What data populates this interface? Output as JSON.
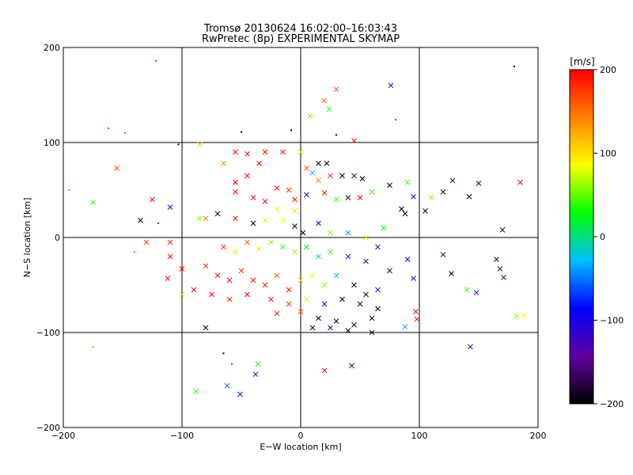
{
  "chart_data": {
    "type": "scatter",
    "title_line1": "Tromsø 20130624 16:02:00–16:03:43",
    "title_line2": "RwPretec (8p) EXPERIMENTAL SKYMAP",
    "xlabel": "E−W location [km]",
    "ylabel": "N−S location [km]",
    "xlim": [
      -200,
      200
    ],
    "ylim": [
      -200,
      200
    ],
    "x_ticks": [
      -200,
      -100,
      0,
      100,
      200
    ],
    "y_ticks": [
      -200,
      -100,
      0,
      100,
      200
    ],
    "x_tick_labels": [
      "−200",
      "−100",
      "0",
      "100",
      "200"
    ],
    "y_tick_labels": [
      "−200",
      "−100",
      "0",
      "100",
      "200"
    ],
    "grid": true,
    "colorbar": {
      "label": "[m/s]",
      "range": [
        -200,
        200
      ],
      "ticks": [
        200,
        100,
        0,
        -100,
        -200
      ],
      "tick_labels": [
        "200",
        "100",
        "0",
        "−100",
        "−200"
      ],
      "colormap": [
        "#000000",
        "#6000a0",
        "#0000ff",
        "#00c0ff",
        "#00ff00",
        "#ffff00",
        "#ff8000",
        "#ff0000"
      ]
    },
    "markers": {
      "cross": "large-velocity estimate",
      "dot": "small point"
    },
    "points": [
      [
        -122,
        186,
        190,
        "dot"
      ],
      [
        76,
        160,
        -120,
        "cross"
      ],
      [
        30,
        156,
        170,
        "cross"
      ],
      [
        20,
        144,
        160,
        "cross"
      ],
      [
        24,
        135,
        40,
        "cross"
      ],
      [
        8,
        128,
        60,
        "cross"
      ],
      [
        80,
        124,
        190,
        "dot"
      ],
      [
        180,
        180,
        -200,
        "dot"
      ],
      [
        -162,
        115,
        170,
        "dot"
      ],
      [
        -148,
        110,
        160,
        "dot"
      ],
      [
        -8,
        113,
        -200,
        "dot"
      ],
      [
        -50,
        111,
        -200,
        "dot"
      ],
      [
        45,
        102,
        190,
        "cross"
      ],
      [
        30,
        108,
        -200,
        "dot"
      ],
      [
        -103,
        98,
        -200,
        "dot"
      ],
      [
        -85,
        98,
        110,
        "cross"
      ],
      [
        -155,
        73,
        170,
        "cross"
      ],
      [
        -175,
        37,
        40,
        "cross"
      ],
      [
        -135,
        18,
        -200,
        "cross"
      ],
      [
        -125,
        40,
        200,
        "cross"
      ],
      [
        -110,
        32,
        -100,
        "cross"
      ],
      [
        -120,
        15,
        200,
        "dot"
      ],
      [
        -130,
        -5,
        180,
        "cross"
      ],
      [
        -140,
        -15,
        -20,
        "dot"
      ],
      [
        -110,
        -5,
        190,
        "cross"
      ],
      [
        -110,
        -20,
        200,
        "cross"
      ],
      [
        -112,
        -43,
        190,
        "cross"
      ],
      [
        -100,
        -33,
        200,
        "cross"
      ],
      [
        -100,
        -60,
        100,
        "cross"
      ],
      [
        -195,
        50,
        40,
        "dot"
      ],
      [
        -175,
        -115,
        40,
        "dot"
      ],
      [
        -88,
        -162,
        40,
        "cross"
      ],
      [
        -62,
        -156,
        -60,
        "cross"
      ],
      [
        -51,
        -165,
        -80,
        "cross"
      ],
      [
        -38,
        -144,
        -100,
        "cross"
      ],
      [
        -36,
        -133,
        40,
        "cross"
      ],
      [
        -58,
        -133,
        190,
        "dot"
      ],
      [
        20,
        -140,
        200,
        "cross"
      ],
      [
        43,
        -135,
        -160,
        "cross"
      ],
      [
        -80,
        -95,
        -200,
        "cross"
      ],
      [
        -65,
        -122,
        -200,
        "dot"
      ],
      [
        142,
        43,
        -200,
        "cross"
      ],
      [
        150,
        57,
        -170,
        "cross"
      ],
      [
        128,
        60,
        -170,
        "cross"
      ],
      [
        120,
        48,
        -190,
        "cross"
      ],
      [
        105,
        28,
        -200,
        "cross"
      ],
      [
        110,
        42,
        60,
        "cross"
      ],
      [
        85,
        30,
        -200,
        "cross"
      ],
      [
        120,
        -18,
        -160,
        "cross"
      ],
      [
        127,
        -38,
        -200,
        "cross"
      ],
      [
        140,
        -55,
        40,
        "cross"
      ],
      [
        148,
        -58,
        -80,
        "cross"
      ],
      [
        170,
        8,
        -200,
        "cross"
      ],
      [
        165,
        -23,
        -180,
        "cross"
      ],
      [
        171,
        -42,
        -170,
        "cross"
      ],
      [
        168,
        -33,
        -170,
        "cross"
      ],
      [
        185,
        58,
        200,
        "cross"
      ],
      [
        182,
        -83,
        60,
        "cross"
      ],
      [
        188,
        -82,
        90,
        "cross"
      ],
      [
        143,
        -115,
        -130,
        "cross"
      ],
      [
        90,
        -23,
        -100,
        "cross"
      ],
      [
        95,
        -43,
        -120,
        "cross"
      ],
      [
        97,
        -78,
        200,
        "cross"
      ],
      [
        98,
        -86,
        200,
        "cross"
      ],
      [
        88,
        -94,
        -40,
        "cross"
      ],
      [
        60,
        -100,
        -200,
        "cross"
      ],
      [
        -55,
        90,
        200,
        "cross"
      ],
      [
        -45,
        88,
        200,
        "cross"
      ],
      [
        -30,
        90,
        200,
        "cross"
      ],
      [
        -15,
        90,
        200,
        "cross"
      ],
      [
        0,
        90,
        80,
        "cross"
      ],
      [
        15,
        78,
        -200,
        "cross"
      ],
      [
        22,
        78,
        -200,
        "cross"
      ],
      [
        -65,
        78,
        140,
        "cross"
      ],
      [
        -35,
        78,
        200,
        "cross"
      ],
      [
        -45,
        65,
        200,
        "cross"
      ],
      [
        -55,
        58,
        200,
        "cross"
      ],
      [
        -20,
        52,
        200,
        "cross"
      ],
      [
        -10,
        50,
        180,
        "cross"
      ],
      [
        -5,
        40,
        190,
        "cross"
      ],
      [
        5,
        73,
        160,
        "cross"
      ],
      [
        10,
        68,
        -20,
        "cross"
      ],
      [
        15,
        60,
        140,
        "cross"
      ],
      [
        25,
        65,
        180,
        "cross"
      ],
      [
        35,
        65,
        -200,
        "cross"
      ],
      [
        45,
        65,
        -160,
        "cross"
      ],
      [
        52,
        62,
        -200,
        "cross"
      ],
      [
        -30,
        38,
        200,
        "cross"
      ],
      [
        -40,
        42,
        200,
        "cross"
      ],
      [
        -55,
        48,
        200,
        "cross"
      ],
      [
        -20,
        30,
        80,
        "cross"
      ],
      [
        -5,
        28,
        100,
        "cross"
      ],
      [
        5,
        45,
        -160,
        "cross"
      ],
      [
        20,
        47,
        190,
        "cross"
      ],
      [
        30,
        40,
        40,
        "cross"
      ],
      [
        40,
        42,
        -200,
        "cross"
      ],
      [
        50,
        42,
        200,
        "cross"
      ],
      [
        60,
        48,
        40,
        "cross"
      ],
      [
        75,
        55,
        -200,
        "cross"
      ],
      [
        90,
        58,
        40,
        "cross"
      ],
      [
        95,
        43,
        -120,
        "cross"
      ],
      [
        88,
        25,
        -200,
        "cross"
      ],
      [
        -70,
        25,
        -200,
        "cross"
      ],
      [
        -80,
        20,
        140,
        "cross"
      ],
      [
        -85,
        20,
        60,
        "cross"
      ],
      [
        -55,
        20,
        190,
        "cross"
      ],
      [
        -40,
        15,
        -200,
        "cross"
      ],
      [
        -30,
        18,
        100,
        "cross"
      ],
      [
        -15,
        18,
        80,
        "cross"
      ],
      [
        -5,
        12,
        -200,
        "cross"
      ],
      [
        2,
        5,
        -200,
        "cross"
      ],
      [
        15,
        15,
        -100,
        "cross"
      ],
      [
        25,
        5,
        60,
        "cross"
      ],
      [
        40,
        5,
        -40,
        "cross"
      ],
      [
        55,
        0,
        100,
        "cross"
      ],
      [
        70,
        10,
        30,
        "cross"
      ],
      [
        -65,
        -10,
        180,
        "cross"
      ],
      [
        -55,
        -15,
        100,
        "cross"
      ],
      [
        -45,
        -5,
        160,
        "cross"
      ],
      [
        -35,
        -12,
        100,
        "cross"
      ],
      [
        -25,
        -5,
        60,
        "cross"
      ],
      [
        -15,
        -10,
        40,
        "cross"
      ],
      [
        -5,
        -15,
        60,
        "cross"
      ],
      [
        5,
        -10,
        20,
        "cross"
      ],
      [
        15,
        -20,
        0,
        "cross"
      ],
      [
        25,
        -15,
        40,
        "cross"
      ],
      [
        40,
        -20,
        -80,
        "cross"
      ],
      [
        55,
        -25,
        -160,
        "cross"
      ],
      [
        65,
        -10,
        -120,
        "cross"
      ],
      [
        75,
        -35,
        -180,
        "cross"
      ],
      [
        -80,
        -30,
        180,
        "cross"
      ],
      [
        -70,
        -40,
        190,
        "cross"
      ],
      [
        -60,
        -45,
        200,
        "cross"
      ],
      [
        -50,
        -35,
        180,
        "cross"
      ],
      [
        -40,
        -45,
        200,
        "cross"
      ],
      [
        -30,
        -50,
        190,
        "cross"
      ],
      [
        -20,
        -40,
        160,
        "cross"
      ],
      [
        -10,
        -55,
        200,
        "cross"
      ],
      [
        0,
        -45,
        100,
        "cross"
      ],
      [
        10,
        -40,
        80,
        "cross"
      ],
      [
        20,
        -50,
        60,
        "cross"
      ],
      [
        30,
        -40,
        -20,
        "cross"
      ],
      [
        45,
        -50,
        -200,
        "cross"
      ],
      [
        55,
        -60,
        -200,
        "cross"
      ],
      [
        65,
        -55,
        -120,
        "cross"
      ],
      [
        -90,
        -55,
        200,
        "cross"
      ],
      [
        -75,
        -60,
        200,
        "cross"
      ],
      [
        -60,
        -65,
        190,
        "cross"
      ],
      [
        -45,
        -60,
        200,
        "cross"
      ],
      [
        -25,
        -65,
        190,
        "cross"
      ],
      [
        -10,
        -70,
        180,
        "cross"
      ],
      [
        5,
        -65,
        100,
        "cross"
      ],
      [
        20,
        -70,
        -100,
        "cross"
      ],
      [
        35,
        -65,
        -200,
        "cross"
      ],
      [
        50,
        -70,
        -200,
        "cross"
      ],
      [
        65,
        -75,
        -200,
        "cross"
      ],
      [
        -20,
        -80,
        190,
        "cross"
      ],
      [
        0,
        -78,
        160,
        "cross"
      ],
      [
        15,
        -85,
        -200,
        "cross"
      ],
      [
        30,
        -88,
        -200,
        "cross"
      ],
      [
        45,
        -92,
        -200,
        "cross"
      ],
      [
        60,
        -85,
        -200,
        "cross"
      ],
      [
        10,
        -95,
        -200,
        "cross"
      ],
      [
        25,
        -95,
        -160,
        "cross"
      ],
      [
        40,
        -98,
        -200,
        "cross"
      ]
    ]
  }
}
